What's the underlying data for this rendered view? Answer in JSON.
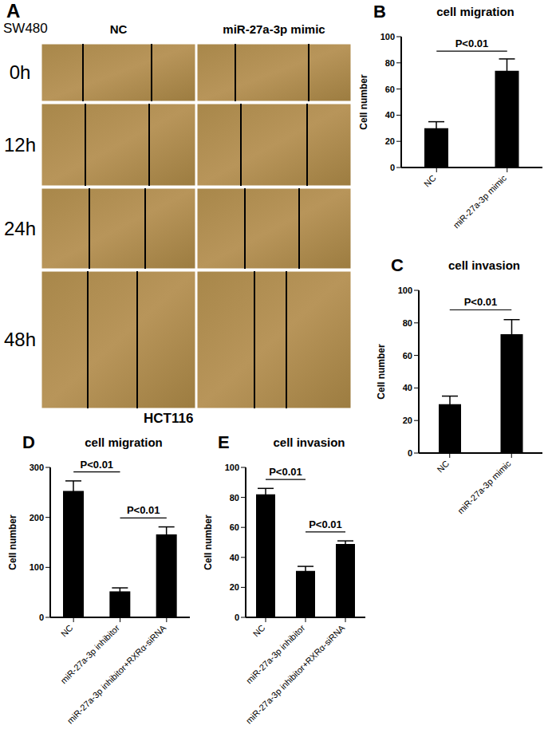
{
  "panel_a": {
    "panel": "A",
    "cell_line": "SW480",
    "columns": [
      "NC",
      "miR-27a-3p mimic"
    ],
    "rows": [
      "0h",
      "12h",
      "24h",
      "48h"
    ]
  },
  "heading": "HCT116",
  "chart_data": [
    {
      "panel": "B",
      "type": "bar",
      "title": "cell migration",
      "y_label": "Cell number",
      "categories": [
        "NC",
        "miR-27a-3p mimic"
      ],
      "values": [
        30,
        74
      ],
      "errors": [
        5,
        9
      ],
      "color": "#000000",
      "ylim": [
        0,
        100
      ],
      "yticks": [
        0,
        20,
        40,
        60,
        80,
        100
      ],
      "annotations": [
        {
          "text": "P<0.01",
          "from": "NC",
          "to": "miR-27a-3p mimic"
        }
      ]
    },
    {
      "panel": "C",
      "type": "bar",
      "title": "cell invasion",
      "y_label": "Cell number",
      "categories": [
        "NC",
        "miR-27a-3p mimic"
      ],
      "values": [
        30,
        73
      ],
      "errors": [
        5,
        9
      ],
      "color": "#000000",
      "ylim": [
        0,
        100
      ],
      "yticks": [
        0,
        20,
        40,
        60,
        80,
        100
      ],
      "annotations": [
        {
          "text": "P<0.01",
          "from": "NC",
          "to": "miR-27a-3p mimic"
        }
      ]
    },
    {
      "panel": "D",
      "type": "bar",
      "title": "cell migration",
      "y_label": "Cell number",
      "categories": [
        "NC",
        "miR-27a-3p inhibitor",
        "miR-27a-3p inhibitor+RXRα-siRNA"
      ],
      "values": [
        253,
        52,
        166
      ],
      "errors": [
        20,
        7,
        15
      ],
      "color": "#000000",
      "ylim": [
        0,
        300
      ],
      "yticks": [
        0,
        100,
        200,
        300
      ],
      "annotations": [
        {
          "text": "P<0.01",
          "from": "NC",
          "to": "miR-27a-3p inhibitor"
        },
        {
          "text": "P<0.01",
          "from": "miR-27a-3p inhibitor",
          "to": "miR-27a-3p inhibitor+RXRα-siRNA"
        }
      ]
    },
    {
      "panel": "E",
      "type": "bar",
      "title": "cell invasion",
      "y_label": "Cell number",
      "categories": [
        "NC",
        "miR-27a-3p inhibitor",
        "miR-27a-3p inhibitor+RXRα-siRNA"
      ],
      "values": [
        82,
        31,
        49
      ],
      "errors": [
        4,
        3,
        2
      ],
      "color": "#000000",
      "ylim": [
        0,
        100
      ],
      "yticks": [
        0,
        20,
        40,
        60,
        80,
        100
      ],
      "annotations": [
        {
          "text": "P<0.01",
          "from": "NC",
          "to": "miR-27a-3p inhibitor"
        },
        {
          "text": "P<0.01",
          "from": "miR-27a-3p inhibitor",
          "to": "miR-27a-3p inhibitor+RXRα-siRNA"
        }
      ]
    }
  ]
}
